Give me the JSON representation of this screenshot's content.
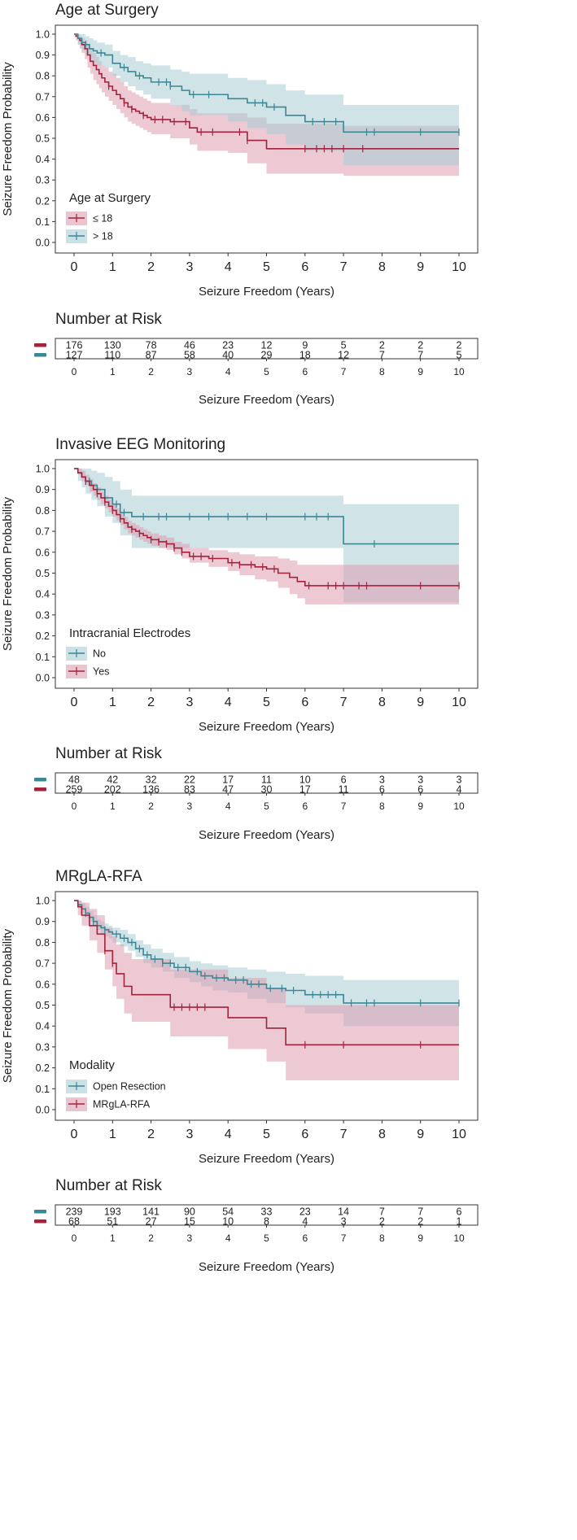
{
  "colors": {
    "teal": "#3a8795",
    "teal_band": "#a9cdd5",
    "red": "#a3223c",
    "red_band": "#dc9cae",
    "frame": "#333333"
  },
  "chart_data": [
    {
      "type": "line",
      "title": "Age at Surgery",
      "xlabel": "Seizure Freedom (Years)",
      "ylabel": "Seizure Freedom Probability",
      "xlim": [
        0,
        10
      ],
      "ylim": [
        0,
        1
      ],
      "x_ticks": [
        "0",
        "1",
        "2",
        "3",
        "4",
        "5",
        "6",
        "7",
        "8",
        "9",
        "10"
      ],
      "y_ticks": [
        "0.0",
        "0.1",
        "0.2",
        "0.3",
        "0.4",
        "0.5",
        "0.6",
        "0.7",
        "0.8",
        "0.9",
        "1.0"
      ],
      "legend_title": "Age at Surgery",
      "legend_position": "bottom-left",
      "series": [
        {
          "name": "≤ 18",
          "color": "red",
          "x": [
            0,
            0.05,
            0.1,
            0.15,
            0.2,
            0.28,
            0.35,
            0.42,
            0.5,
            0.58,
            0.65,
            0.72,
            0.8,
            0.9,
            1.0,
            1.1,
            1.2,
            1.3,
            1.4,
            1.5,
            1.6,
            1.7,
            1.8,
            1.9,
            2.0,
            2.5,
            3.0,
            3.2,
            4.0,
            4.5,
            5.0,
            7.0,
            10.0
          ],
          "y": [
            1.0,
            0.99,
            0.98,
            0.97,
            0.95,
            0.93,
            0.9,
            0.87,
            0.85,
            0.83,
            0.81,
            0.79,
            0.77,
            0.75,
            0.73,
            0.71,
            0.69,
            0.67,
            0.65,
            0.64,
            0.63,
            0.62,
            0.61,
            0.6,
            0.59,
            0.58,
            0.55,
            0.53,
            0.53,
            0.49,
            0.45,
            0.45,
            0.45
          ],
          "lower": [
            1.0,
            0.97,
            0.95,
            0.93,
            0.91,
            0.88,
            0.84,
            0.81,
            0.78,
            0.76,
            0.74,
            0.72,
            0.7,
            0.68,
            0.66,
            0.64,
            0.62,
            0.6,
            0.58,
            0.57,
            0.56,
            0.55,
            0.54,
            0.53,
            0.52,
            0.5,
            0.47,
            0.44,
            0.43,
            0.38,
            0.33,
            0.32,
            0.32
          ],
          "upper": [
            1.0,
            1.0,
            1.0,
            0.99,
            0.98,
            0.97,
            0.95,
            0.93,
            0.91,
            0.89,
            0.87,
            0.85,
            0.84,
            0.82,
            0.81,
            0.79,
            0.77,
            0.75,
            0.73,
            0.72,
            0.71,
            0.7,
            0.69,
            0.68,
            0.67,
            0.66,
            0.64,
            0.62,
            0.62,
            0.6,
            0.57,
            0.56,
            0.56
          ],
          "censor_x": [
            0.9,
            1.3,
            1.5,
            1.8,
            2.1,
            2.3,
            2.6,
            2.9,
            3.3,
            3.6,
            4.3,
            4.5,
            6.0,
            6.3,
            6.5,
            6.7,
            7.0,
            7.5
          ],
          "at_risk": [
            "176",
            "130",
            "78",
            "46",
            "23",
            "12",
            "9",
            "5",
            "2",
            "2",
            "2"
          ]
        },
        {
          "name": "> 18",
          "color": "teal",
          "x": [
            0,
            0.1,
            0.2,
            0.3,
            0.4,
            0.5,
            0.6,
            0.8,
            1.0,
            1.2,
            1.4,
            1.6,
            1.8,
            2.0,
            2.5,
            2.8,
            3.0,
            4.0,
            4.5,
            5.0,
            5.5,
            6.0,
            7.0,
            10.0
          ],
          "y": [
            1.0,
            0.98,
            0.96,
            0.95,
            0.93,
            0.92,
            0.91,
            0.9,
            0.86,
            0.84,
            0.82,
            0.8,
            0.79,
            0.77,
            0.75,
            0.73,
            0.71,
            0.69,
            0.67,
            0.65,
            0.61,
            0.58,
            0.53,
            0.53
          ],
          "lower": [
            1.0,
            0.95,
            0.92,
            0.9,
            0.88,
            0.86,
            0.85,
            0.84,
            0.8,
            0.77,
            0.75,
            0.73,
            0.71,
            0.69,
            0.66,
            0.63,
            0.61,
            0.58,
            0.55,
            0.52,
            0.47,
            0.44,
            0.37,
            0.37
          ],
          "upper": [
            1.0,
            1.0,
            1.0,
            0.99,
            0.98,
            0.97,
            0.96,
            0.95,
            0.92,
            0.9,
            0.89,
            0.87,
            0.86,
            0.85,
            0.83,
            0.82,
            0.81,
            0.79,
            0.78,
            0.76,
            0.73,
            0.71,
            0.66,
            0.66
          ],
          "censor_x": [
            0.3,
            0.7,
            1.3,
            1.7,
            2.2,
            2.4,
            2.5,
            3.1,
            3.5,
            4.7,
            4.9,
            5.2,
            6.2,
            6.5,
            6.8,
            7.6,
            7.8,
            9.0,
            10.0
          ],
          "at_risk": [
            "127",
            "110",
            "87",
            "58",
            "40",
            "29",
            "18",
            "12",
            "7",
            "7",
            "5"
          ]
        }
      ],
      "risk_table": {
        "title": "Number at Risk",
        "xlabel": "Seizure Freedom (Years)",
        "ticks": [
          "0",
          "1",
          "2",
          "3",
          "4",
          "5",
          "6",
          "7",
          "8",
          "9",
          "10"
        ]
      }
    },
    {
      "type": "line",
      "title": "Invasive EEG Monitoring",
      "xlabel": "Seizure Freedom (Years)",
      "ylabel": "Seizure Freedom Probability",
      "xlim": [
        0,
        10
      ],
      "ylim": [
        0,
        1
      ],
      "x_ticks": [
        "0",
        "1",
        "2",
        "3",
        "4",
        "5",
        "6",
        "7",
        "8",
        "9",
        "10"
      ],
      "y_ticks": [
        "0.0",
        "0.1",
        "0.2",
        "0.3",
        "0.4",
        "0.5",
        "0.6",
        "0.7",
        "0.8",
        "0.9",
        "1.0"
      ],
      "legend_title": "Intracranial Electrodes",
      "legend_position": "bottom-left",
      "series": [
        {
          "name": "No",
          "color": "teal",
          "x": [
            0,
            0.1,
            0.2,
            0.3,
            0.45,
            0.6,
            0.8,
            1.0,
            1.2,
            1.5,
            7.0,
            10.0
          ],
          "y": [
            1.0,
            0.98,
            0.96,
            0.94,
            0.92,
            0.9,
            0.86,
            0.83,
            0.79,
            0.77,
            0.64,
            0.64
          ],
          "lower": [
            1.0,
            0.94,
            0.91,
            0.88,
            0.85,
            0.82,
            0.77,
            0.74,
            0.68,
            0.62,
            0.36,
            0.36
          ],
          "upper": [
            1.0,
            1.0,
            1.0,
            1.0,
            0.99,
            0.98,
            0.96,
            0.94,
            0.9,
            0.87,
            0.83,
            0.83
          ],
          "censor_x": [
            0.4,
            1.1,
            1.3,
            1.8,
            2.2,
            2.4,
            3.0,
            3.5,
            4.0,
            4.5,
            5.0,
            6.0,
            6.3,
            6.6,
            7.8
          ],
          "at_risk": [
            "48",
            "42",
            "32",
            "22",
            "17",
            "11",
            "10",
            "6",
            "3",
            "3",
            "3"
          ]
        },
        {
          "name": "Yes",
          "color": "red",
          "x": [
            0,
            0.1,
            0.2,
            0.3,
            0.4,
            0.5,
            0.6,
            0.7,
            0.8,
            0.9,
            1.0,
            1.1,
            1.2,
            1.3,
            1.4,
            1.5,
            1.6,
            1.7,
            1.8,
            1.9,
            2.0,
            2.2,
            2.4,
            2.6,
            2.8,
            3.0,
            3.5,
            4.0,
            4.3,
            4.7,
            5.0,
            5.3,
            5.6,
            5.8,
            6.0,
            10.0
          ],
          "y": [
            1.0,
            0.98,
            0.96,
            0.94,
            0.92,
            0.9,
            0.88,
            0.86,
            0.84,
            0.82,
            0.8,
            0.78,
            0.76,
            0.74,
            0.72,
            0.71,
            0.7,
            0.69,
            0.68,
            0.67,
            0.66,
            0.65,
            0.64,
            0.62,
            0.6,
            0.58,
            0.57,
            0.55,
            0.54,
            0.53,
            0.52,
            0.5,
            0.48,
            0.46,
            0.44,
            0.44
          ],
          "lower": [
            1.0,
            0.97,
            0.94,
            0.92,
            0.89,
            0.87,
            0.85,
            0.83,
            0.81,
            0.79,
            0.77,
            0.75,
            0.73,
            0.71,
            0.69,
            0.68,
            0.67,
            0.66,
            0.65,
            0.64,
            0.63,
            0.62,
            0.61,
            0.59,
            0.57,
            0.55,
            0.53,
            0.51,
            0.49,
            0.47,
            0.46,
            0.43,
            0.4,
            0.38,
            0.35,
            0.33
          ],
          "upper": [
            1.0,
            1.0,
            0.99,
            0.97,
            0.95,
            0.93,
            0.91,
            0.89,
            0.87,
            0.85,
            0.83,
            0.81,
            0.79,
            0.77,
            0.75,
            0.74,
            0.73,
            0.72,
            0.71,
            0.7,
            0.69,
            0.68,
            0.67,
            0.65,
            0.64,
            0.62,
            0.61,
            0.6,
            0.59,
            0.58,
            0.58,
            0.57,
            0.56,
            0.54,
            0.54,
            0.54
          ],
          "censor_x": [
            0.3,
            0.6,
            0.8,
            1.0,
            1.2,
            1.5,
            1.7,
            2.0,
            2.2,
            2.4,
            2.6,
            2.8,
            3.1,
            3.3,
            3.6,
            4.1,
            4.3,
            4.6,
            4.9,
            5.2,
            6.1,
            6.6,
            6.8,
            7.0,
            7.4,
            7.6,
            9.0,
            10.0
          ],
          "at_risk": [
            "259",
            "202",
            "136",
            "83",
            "47",
            "30",
            "17",
            "11",
            "6",
            "6",
            "4"
          ]
        }
      ],
      "risk_table": {
        "title": "Number at Risk",
        "xlabel": "Seizure Freedom (Years)",
        "ticks": [
          "0",
          "1",
          "2",
          "3",
          "4",
          "5",
          "6",
          "7",
          "8",
          "9",
          "10"
        ]
      }
    },
    {
      "type": "line",
      "title": "MRgLA-RFA",
      "xlabel": "Seizure Freedom (Years)",
      "ylabel": "Seizure Freedom Probability",
      "xlim": [
        0,
        10
      ],
      "ylim": [
        0,
        1
      ],
      "x_ticks": [
        "0",
        "1",
        "2",
        "3",
        "4",
        "5",
        "6",
        "7",
        "8",
        "9",
        "10"
      ],
      "y_ticks": [
        "0.0",
        "0.1",
        "0.2",
        "0.3",
        "0.4",
        "0.5",
        "0.6",
        "0.7",
        "0.8",
        "0.9",
        "1.0"
      ],
      "legend_title": "Modality",
      "legend_position": "bottom-left",
      "series": [
        {
          "name": "Open Resection",
          "color": "teal",
          "x": [
            0,
            0.1,
            0.2,
            0.3,
            0.4,
            0.5,
            0.6,
            0.7,
            0.8,
            0.9,
            1.0,
            1.2,
            1.4,
            1.6,
            1.8,
            2.0,
            2.3,
            2.6,
            3.0,
            3.3,
            3.6,
            4.0,
            4.5,
            5.0,
            5.5,
            6.0,
            7.0,
            10.0
          ],
          "y": [
            1.0,
            0.98,
            0.96,
            0.94,
            0.92,
            0.9,
            0.88,
            0.87,
            0.86,
            0.85,
            0.84,
            0.82,
            0.8,
            0.77,
            0.74,
            0.72,
            0.7,
            0.68,
            0.66,
            0.64,
            0.63,
            0.62,
            0.6,
            0.58,
            0.57,
            0.55,
            0.51,
            0.51
          ],
          "lower": [
            1.0,
            0.97,
            0.94,
            0.92,
            0.9,
            0.88,
            0.86,
            0.84,
            0.83,
            0.82,
            0.8,
            0.78,
            0.76,
            0.73,
            0.7,
            0.68,
            0.66,
            0.63,
            0.61,
            0.59,
            0.57,
            0.56,
            0.53,
            0.51,
            0.49,
            0.46,
            0.4,
            0.4
          ],
          "upper": [
            1.0,
            1.0,
            0.99,
            0.97,
            0.95,
            0.93,
            0.91,
            0.9,
            0.89,
            0.88,
            0.87,
            0.86,
            0.84,
            0.81,
            0.79,
            0.77,
            0.75,
            0.73,
            0.71,
            0.7,
            0.69,
            0.68,
            0.67,
            0.66,
            0.65,
            0.64,
            0.62,
            0.62
          ],
          "censor_x": [
            0.3,
            0.5,
            0.8,
            1.1,
            1.3,
            1.5,
            1.7,
            1.9,
            2.1,
            2.3,
            2.5,
            2.7,
            2.9,
            3.2,
            3.4,
            3.7,
            3.9,
            4.2,
            4.4,
            4.6,
            4.8,
            5.1,
            5.4,
            5.7,
            6.2,
            6.4,
            6.6,
            6.8,
            7.2,
            7.6,
            7.8,
            9.0,
            10.0
          ],
          "at_risk": [
            "239",
            "193",
            "141",
            "90",
            "54",
            "33",
            "23",
            "14",
            "7",
            "7",
            "6"
          ]
        },
        {
          "name": "MRgLA-RFA",
          "color": "red",
          "x": [
            0,
            0.1,
            0.2,
            0.4,
            0.6,
            0.8,
            1.0,
            1.1,
            1.3,
            1.5,
            2.5,
            4.0,
            5.0,
            5.5,
            10.0
          ],
          "y": [
            1.0,
            0.97,
            0.93,
            0.88,
            0.84,
            0.76,
            0.7,
            0.65,
            0.59,
            0.55,
            0.49,
            0.44,
            0.39,
            0.31,
            0.31
          ],
          "lower": [
            1.0,
            0.93,
            0.88,
            0.81,
            0.75,
            0.67,
            0.59,
            0.53,
            0.46,
            0.42,
            0.35,
            0.29,
            0.23,
            0.14,
            0.14
          ],
          "upper": [
            1.0,
            1.0,
            0.99,
            0.96,
            0.93,
            0.87,
            0.83,
            0.79,
            0.75,
            0.72,
            0.67,
            0.63,
            0.58,
            0.5,
            0.5
          ],
          "censor_x": [
            0.8,
            1.0,
            2.6,
            2.8,
            3.0,
            3.2,
            3.4,
            6.0,
            7.0,
            9.0
          ],
          "at_risk": [
            "68",
            "51",
            "27",
            "15",
            "10",
            "8",
            "4",
            "3",
            "2",
            "2",
            "1"
          ]
        }
      ],
      "risk_table": {
        "title": "Number at Risk",
        "xlabel": "Seizure Freedom (Years)",
        "ticks": [
          "0",
          "1",
          "2",
          "3",
          "4",
          "5",
          "6",
          "7",
          "8",
          "9",
          "10"
        ]
      }
    }
  ]
}
